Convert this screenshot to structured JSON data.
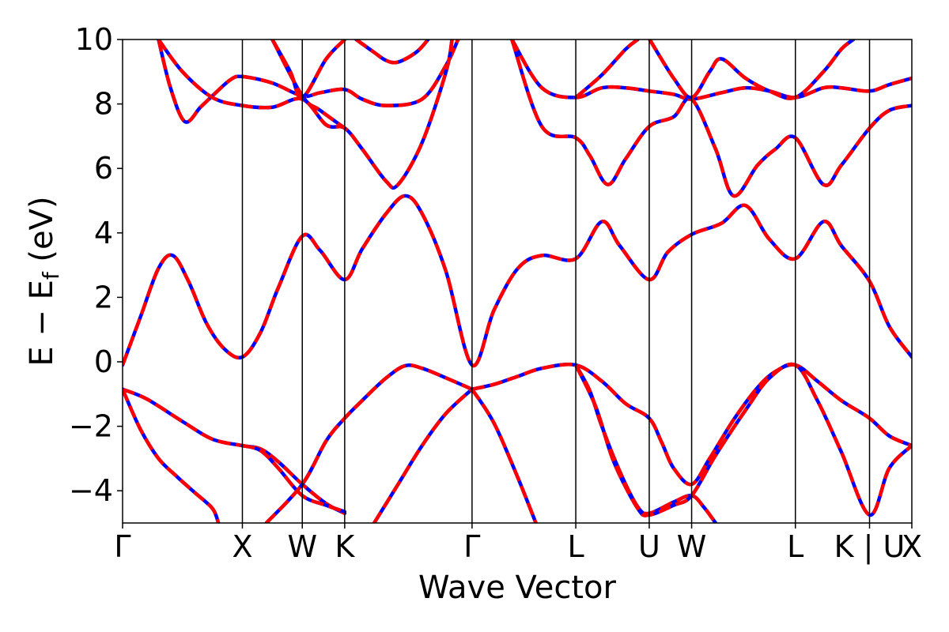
{
  "chart_data": {
    "type": "line",
    "title": "",
    "xlabel": "Wave Vector",
    "ylabel_parts": [
      "E − E",
      "f",
      " (eV)"
    ],
    "ylim": [
      -5,
      10
    ],
    "yticks": [
      -4,
      -2,
      0,
      2,
      4,
      6,
      8,
      10
    ],
    "ytick_labels": [
      "−4",
      "−2",
      "0",
      "2",
      "4",
      "6",
      "8",
      "10"
    ],
    "grid": false,
    "legend": "none",
    "kpath_labels": [
      "Γ",
      "X",
      "W",
      "K",
      "Γ",
      "L",
      "U",
      "W",
      "L",
      "K | U",
      "X"
    ],
    "kpath_x": [
      0,
      1.0,
      1.5,
      1.854,
      2.917,
      3.783,
      4.396,
      4.75,
      5.616,
      6.235,
      6.588
    ],
    "vertical_lines": true,
    "colors": {
      "series_solid": "#0000ff",
      "series_dashed": "#ff0000",
      "frame": "#000000"
    },
    "series": [
      {
        "points": [
          [
            0,
            -0.85
          ],
          [
            0.2,
            -1.15
          ],
          [
            0.5,
            -1.85
          ],
          [
            0.75,
            -2.4
          ],
          [
            1.0,
            -2.6
          ],
          [
            1.15,
            -2.7
          ],
          [
            1.3,
            -3.1
          ],
          [
            1.5,
            -3.8
          ],
          [
            1.7,
            -4.4
          ],
          [
            1.854,
            -4.7
          ]
        ]
      },
      {
        "points": [
          [
            0,
            -0.85
          ],
          [
            0.15,
            -2.1
          ],
          [
            0.3,
            -3.0
          ],
          [
            0.45,
            -3.55
          ],
          [
            0.6,
            -4.05
          ],
          [
            0.75,
            -4.55
          ],
          [
            0.8,
            -5.0
          ]
        ]
      },
      {
        "points": [
          [
            1.0,
            -2.6
          ],
          [
            1.15,
            -2.75
          ],
          [
            1.3,
            -3.3
          ],
          [
            1.5,
            -4.15
          ],
          [
            1.7,
            -4.45
          ],
          [
            1.854,
            -4.65
          ]
        ]
      },
      {
        "points": [
          [
            1.2,
            -5.0
          ],
          [
            1.5,
            -3.8
          ],
          [
            1.7,
            -2.45
          ],
          [
            1.854,
            -1.75
          ],
          [
            2.0,
            -1.2
          ],
          [
            2.2,
            -0.5
          ],
          [
            2.36,
            -0.12
          ],
          [
            2.5,
            -0.2
          ],
          [
            2.7,
            -0.5
          ],
          [
            2.917,
            -0.85
          ]
        ]
      },
      {
        "points": [
          [
            2.1,
            -5.0
          ],
          [
            2.3,
            -3.8
          ],
          [
            2.5,
            -2.6
          ],
          [
            2.7,
            -1.6
          ],
          [
            2.917,
            -0.85
          ]
        ]
      },
      {
        "points": [
          [
            2.917,
            -0.85
          ],
          [
            3.1,
            -0.7
          ],
          [
            3.3,
            -0.45
          ],
          [
            3.5,
            -0.2
          ],
          [
            3.783,
            -0.1
          ],
          [
            4.0,
            -0.6
          ],
          [
            4.2,
            -1.3
          ],
          [
            4.396,
            -1.75
          ],
          [
            4.5,
            -2.5
          ],
          [
            4.6,
            -3.3
          ],
          [
            4.75,
            -3.8
          ],
          [
            4.9,
            -3.0
          ],
          [
            5.1,
            -1.8
          ],
          [
            5.3,
            -0.8
          ],
          [
            5.45,
            -0.3
          ],
          [
            5.616,
            -0.1
          ],
          [
            5.8,
            -0.6
          ],
          [
            6.0,
            -1.2
          ],
          [
            6.235,
            -1.75
          ],
          [
            6.4,
            -2.3
          ],
          [
            6.588,
            -2.6
          ]
        ]
      },
      {
        "points": [
          [
            2.917,
            -0.85
          ],
          [
            3.1,
            -1.9
          ],
          [
            3.3,
            -3.6
          ],
          [
            3.45,
            -5.0
          ]
        ]
      },
      {
        "points": [
          [
            3.783,
            -0.1
          ],
          [
            3.9,
            -0.9
          ],
          [
            4.0,
            -2.0
          ],
          [
            4.15,
            -3.4
          ],
          [
            4.3,
            -4.5
          ],
          [
            4.396,
            -4.7
          ],
          [
            4.6,
            -4.35
          ],
          [
            4.75,
            -4.15
          ],
          [
            4.85,
            -4.5
          ],
          [
            4.95,
            -5.0
          ]
        ]
      },
      {
        "points": [
          [
            3.783,
            -0.1
          ],
          [
            3.95,
            -1.4
          ],
          [
            4.1,
            -3.1
          ],
          [
            4.3,
            -4.55
          ],
          [
            4.396,
            -4.75
          ],
          [
            4.6,
            -4.45
          ],
          [
            4.75,
            -4.15
          ],
          [
            4.95,
            -2.9
          ],
          [
            5.2,
            -1.5
          ],
          [
            5.4,
            -0.5
          ],
          [
            5.616,
            -0.1
          ],
          [
            5.8,
            -1.2
          ],
          [
            6.0,
            -2.8
          ],
          [
            6.235,
            -4.75
          ],
          [
            6.4,
            -3.3
          ],
          [
            6.588,
            -2.6
          ]
        ]
      },
      {
        "points": [
          [
            0,
            -0.1
          ],
          [
            0.15,
            1.4
          ],
          [
            0.3,
            2.9
          ],
          [
            0.42,
            3.3
          ],
          [
            0.55,
            2.5
          ],
          [
            0.7,
            1.2
          ],
          [
            0.85,
            0.4
          ],
          [
            1.0,
            0.15
          ],
          [
            1.15,
            0.9
          ],
          [
            1.3,
            2.3
          ],
          [
            1.5,
            3.9
          ],
          [
            1.65,
            3.45
          ],
          [
            1.854,
            2.55
          ],
          [
            2.0,
            3.5
          ],
          [
            2.2,
            4.6
          ],
          [
            2.36,
            5.15
          ],
          [
            2.5,
            4.6
          ],
          [
            2.7,
            2.8
          ],
          [
            2.917,
            -0.1
          ],
          [
            3.1,
            1.6
          ],
          [
            3.3,
            2.9
          ],
          [
            3.5,
            3.3
          ],
          [
            3.783,
            3.2
          ],
          [
            4.0,
            4.35
          ],
          [
            4.15,
            3.6
          ],
          [
            4.396,
            2.55
          ],
          [
            4.55,
            3.4
          ],
          [
            4.75,
            3.95
          ],
          [
            5.0,
            4.3
          ],
          [
            5.2,
            4.85
          ],
          [
            5.4,
            3.8
          ],
          [
            5.616,
            3.2
          ],
          [
            5.85,
            4.35
          ],
          [
            6.0,
            3.6
          ],
          [
            6.235,
            2.5
          ],
          [
            6.4,
            1.1
          ],
          [
            6.588,
            0.15
          ]
        ]
      },
      {
        "points": [
          [
            0.3,
            10.0
          ],
          [
            0.4,
            8.5
          ],
          [
            0.52,
            7.45
          ],
          [
            0.65,
            7.9
          ],
          [
            0.75,
            8.25
          ],
          [
            0.9,
            8.75
          ],
          [
            1.0,
            8.85
          ],
          [
            1.25,
            8.65
          ],
          [
            1.5,
            8.25
          ],
          [
            1.65,
            8.35
          ],
          [
            1.854,
            8.45
          ],
          [
            2.0,
            8.15
          ],
          [
            2.2,
            7.95
          ],
          [
            2.5,
            8.15
          ],
          [
            2.7,
            9.2
          ],
          [
            2.8,
            10.0
          ]
        ]
      },
      {
        "points": [
          [
            0.3,
            10.0
          ],
          [
            0.5,
            9.0
          ],
          [
            0.75,
            8.2
          ],
          [
            1.0,
            7.95
          ],
          [
            1.25,
            7.9
          ],
          [
            1.5,
            8.15
          ],
          [
            1.7,
            7.35
          ],
          [
            1.854,
            7.25
          ],
          [
            2.0,
            6.6
          ],
          [
            2.2,
            5.6
          ],
          [
            2.3,
            5.5
          ],
          [
            2.5,
            6.8
          ],
          [
            2.7,
            9.0
          ],
          [
            2.75,
            10.0
          ]
        ]
      },
      {
        "points": [
          [
            1.25,
            10.0
          ],
          [
            1.5,
            8.25
          ],
          [
            1.65,
            7.8
          ],
          [
            1.854,
            7.25
          ]
        ]
      },
      {
        "points": [
          [
            1.25,
            10.0
          ],
          [
            1.4,
            9.0
          ],
          [
            1.5,
            8.2
          ],
          [
            1.7,
            9.4
          ],
          [
            1.854,
            10.0
          ]
        ]
      },
      {
        "points": [
          [
            1.95,
            10.0
          ],
          [
            2.1,
            9.6
          ],
          [
            2.2,
            9.35
          ],
          [
            2.3,
            9.3
          ],
          [
            2.45,
            9.6
          ],
          [
            2.55,
            10.0
          ]
        ]
      },
      {
        "points": [
          [
            3.25,
            10.0
          ],
          [
            3.5,
            8.5
          ],
          [
            3.783,
            8.2
          ],
          [
            4.0,
            8.5
          ],
          [
            4.2,
            8.5
          ],
          [
            4.396,
            8.4
          ],
          [
            4.6,
            8.3
          ],
          [
            4.75,
            8.15
          ],
          [
            5.0,
            8.35
          ],
          [
            5.2,
            8.5
          ],
          [
            5.4,
            8.4
          ],
          [
            5.616,
            8.2
          ],
          [
            5.85,
            8.5
          ],
          [
            6.0,
            8.5
          ],
          [
            6.235,
            8.4
          ],
          [
            6.4,
            8.6
          ],
          [
            6.588,
            8.8
          ]
        ]
      },
      {
        "points": [
          [
            3.25,
            10.0
          ],
          [
            3.5,
            7.3
          ],
          [
            3.783,
            6.95
          ],
          [
            3.9,
            6.4
          ],
          [
            4.05,
            5.5
          ],
          [
            4.2,
            6.3
          ],
          [
            4.396,
            7.3
          ],
          [
            4.6,
            7.6
          ],
          [
            4.75,
            8.15
          ],
          [
            4.95,
            6.6
          ],
          [
            5.1,
            5.15
          ],
          [
            5.3,
            6.1
          ],
          [
            5.45,
            6.6
          ],
          [
            5.616,
            6.95
          ],
          [
            5.85,
            5.5
          ],
          [
            6.0,
            6.1
          ],
          [
            6.235,
            7.25
          ],
          [
            6.4,
            7.8
          ],
          [
            6.588,
            7.95
          ]
        ]
      },
      {
        "points": [
          [
            3.783,
            8.2
          ],
          [
            4.0,
            8.9
          ],
          [
            4.2,
            9.7
          ],
          [
            4.3,
            10.0
          ]
        ]
      },
      {
        "points": [
          [
            4.4,
            10.0
          ],
          [
            4.6,
            8.8
          ],
          [
            4.75,
            8.2
          ],
          [
            4.9,
            9.0
          ],
          [
            5.0,
            9.4
          ],
          [
            5.2,
            8.8
          ],
          [
            5.4,
            8.4
          ],
          [
            5.616,
            8.2
          ],
          [
            5.85,
            9.0
          ],
          [
            6.0,
            9.7
          ],
          [
            6.1,
            10.0
          ]
        ]
      }
    ]
  }
}
